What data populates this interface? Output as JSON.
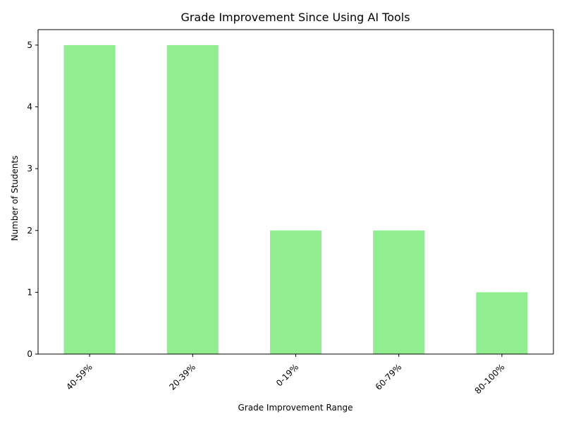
{
  "chart_data": {
    "type": "bar",
    "title": "Grade Improvement Since Using AI Tools",
    "xlabel": "Grade Improvement Range",
    "ylabel": "Number of Students",
    "categories": [
      "40-59%",
      "20-39%",
      "0-19%",
      "60-79%",
      "80-100%"
    ],
    "values": [
      5,
      5,
      2,
      2,
      1
    ],
    "ylim": [
      0,
      5.25
    ],
    "yticks": [
      0,
      1,
      2,
      3,
      4,
      5
    ],
    "bar_color": "#90ee90",
    "grid": false,
    "legend": "none"
  }
}
